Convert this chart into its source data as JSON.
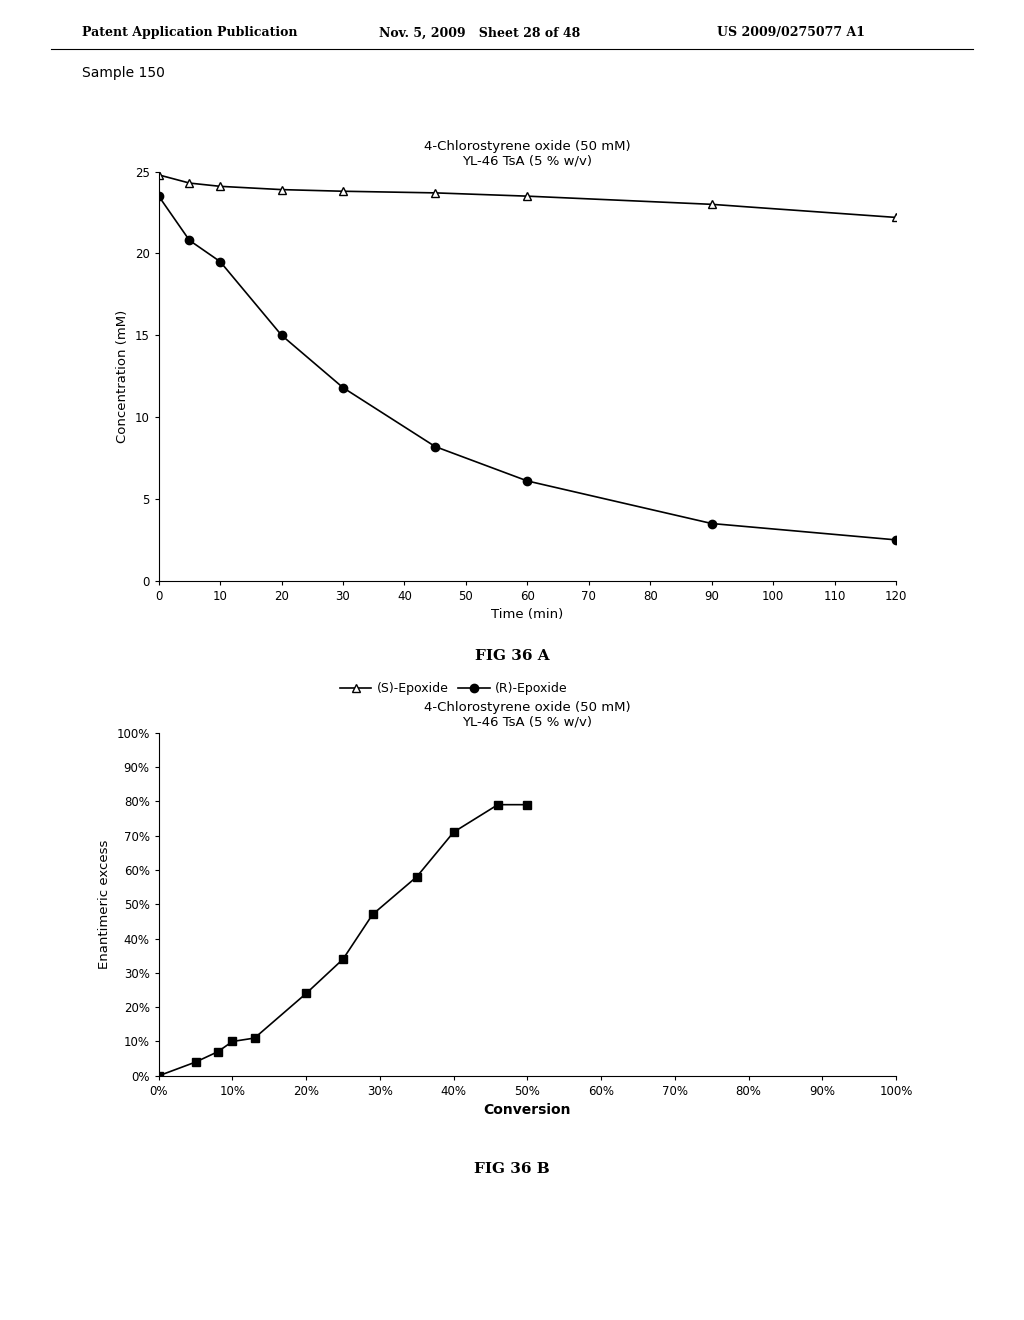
{
  "header_left": "Patent Application Publication",
  "header_mid": "Nov. 5, 2009   Sheet 28 of 48",
  "header_right": "US 2009/0275077 A1",
  "sample_label": "Sample 150",
  "fig_a": {
    "title_line1": "4-Chlorostyrene oxide (50 mM)",
    "title_line2": "YL-46 TsA (5 % w/v)",
    "xlabel": "Time (min)",
    "ylabel": "Concentration (mM)",
    "xlim": [
      0,
      120
    ],
    "ylim": [
      0,
      25
    ],
    "xticks": [
      0,
      10,
      20,
      30,
      40,
      50,
      60,
      70,
      80,
      90,
      100,
      110,
      120
    ],
    "yticks": [
      0,
      5,
      10,
      15,
      20,
      25
    ],
    "s_epoxide_x": [
      0,
      5,
      10,
      20,
      30,
      45,
      60,
      90,
      120
    ],
    "s_epoxide_y": [
      24.8,
      24.3,
      24.1,
      23.9,
      23.8,
      23.7,
      23.5,
      23.0,
      22.2
    ],
    "r_epoxide_x": [
      0,
      5,
      10,
      20,
      30,
      45,
      60,
      90,
      120
    ],
    "r_epoxide_y": [
      23.5,
      20.8,
      19.5,
      15.0,
      11.8,
      8.2,
      6.1,
      3.5,
      2.5
    ],
    "legend_s": "(S)-Epoxide",
    "legend_r": "(R)-Epoxide",
    "fig_label": "FIG 36 A"
  },
  "fig_b": {
    "title_line1": "4-Chlorostyrene oxide (50 mM)",
    "title_line2": "YL-46 TsA (5 % w/v)",
    "xlabel": "Conversion",
    "ylabel": "Enantimeric excess",
    "xlim": [
      0,
      1.0
    ],
    "ylim": [
      0,
      1.0
    ],
    "xticks": [
      0.0,
      0.1,
      0.2,
      0.3,
      0.4,
      0.5,
      0.6,
      0.7,
      0.8,
      0.9,
      1.0
    ],
    "yticks": [
      0.0,
      0.1,
      0.2,
      0.3,
      0.4,
      0.5,
      0.6,
      0.7,
      0.8,
      0.9,
      1.0
    ],
    "data_x": [
      0.0,
      0.05,
      0.08,
      0.1,
      0.13,
      0.2,
      0.25,
      0.29,
      0.35,
      0.4,
      0.46,
      0.5
    ],
    "data_y": [
      0.0,
      0.04,
      0.07,
      0.1,
      0.11,
      0.24,
      0.34,
      0.47,
      0.58,
      0.71,
      0.79,
      0.79
    ],
    "fig_label": "FIG 36 B"
  },
  "bg_color": "#ffffff",
  "text_color": "#000000"
}
